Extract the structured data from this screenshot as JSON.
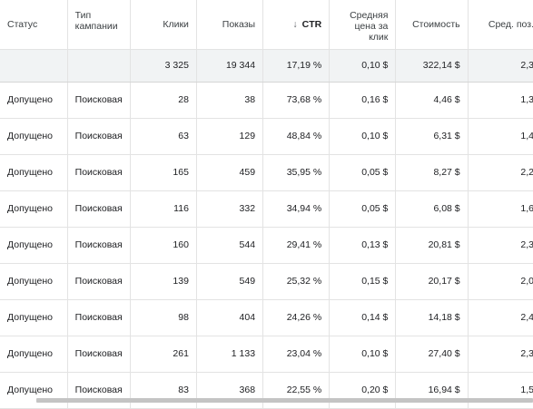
{
  "headers": {
    "status": "Статус",
    "campaign_type": "Тип кампании",
    "clicks": "Клики",
    "impressions": "Показы",
    "ctr": "CTR",
    "avg_cpc": "Средняя цена за клик",
    "cost": "Стоимость",
    "avg_pos": "Сред. поз."
  },
  "sort": {
    "column": "CTR",
    "direction": "descending",
    "arrow": "↓"
  },
  "totals": {
    "status": "",
    "campaign_type": "",
    "clicks": "3 325",
    "impressions": "19 344",
    "ctr": "17,19 %",
    "avg_cpc": "0,10 $",
    "cost": "322,14 $",
    "avg_pos": "2,3"
  },
  "rows": [
    {
      "status": "Допущено",
      "campaign_type": "Поисковая",
      "clicks": "28",
      "impressions": "38",
      "ctr": "73,68 %",
      "avg_cpc": "0,16 $",
      "cost": "4,46 $",
      "avg_pos": "1,3"
    },
    {
      "status": "Допущено",
      "campaign_type": "Поисковая",
      "clicks": "63",
      "impressions": "129",
      "ctr": "48,84 %",
      "avg_cpc": "0,10 $",
      "cost": "6,31 $",
      "avg_pos": "1,4"
    },
    {
      "status": "Допущено",
      "campaign_type": "Поисковая",
      "clicks": "165",
      "impressions": "459",
      "ctr": "35,95 %",
      "avg_cpc": "0,05 $",
      "cost": "8,27 $",
      "avg_pos": "2,2"
    },
    {
      "status": "Допущено",
      "campaign_type": "Поисковая",
      "clicks": "116",
      "impressions": "332",
      "ctr": "34,94 %",
      "avg_cpc": "0,05 $",
      "cost": "6,08 $",
      "avg_pos": "1,6"
    },
    {
      "status": "Допущено",
      "campaign_type": "Поисковая",
      "clicks": "160",
      "impressions": "544",
      "ctr": "29,41 %",
      "avg_cpc": "0,13 $",
      "cost": "20,81 $",
      "avg_pos": "2,3"
    },
    {
      "status": "Допущено",
      "campaign_type": "Поисковая",
      "clicks": "139",
      "impressions": "549",
      "ctr": "25,32 %",
      "avg_cpc": "0,15 $",
      "cost": "20,17 $",
      "avg_pos": "2,0"
    },
    {
      "status": "Допущено",
      "campaign_type": "Поисковая",
      "clicks": "98",
      "impressions": "404",
      "ctr": "24,26 %",
      "avg_cpc": "0,14 $",
      "cost": "14,18 $",
      "avg_pos": "2,4"
    },
    {
      "status": "Допущено",
      "campaign_type": "Поисковая",
      "clicks": "261",
      "impressions": "1 133",
      "ctr": "23,04 %",
      "avg_cpc": "0,10 $",
      "cost": "27,40 $",
      "avg_pos": "2,3"
    },
    {
      "status": "Допущено",
      "campaign_type": "Поисковая",
      "clicks": "83",
      "impressions": "368",
      "ctr": "22,55 %",
      "avg_cpc": "0,20 $",
      "cost": "16,94 $",
      "avg_pos": "1,5"
    }
  ],
  "colors": {
    "header_text": "#3c4043",
    "grid_line": "#e3e3e3",
    "total_row_bg": "#f1f3f4",
    "scrollbar": "#c4c4c4"
  }
}
